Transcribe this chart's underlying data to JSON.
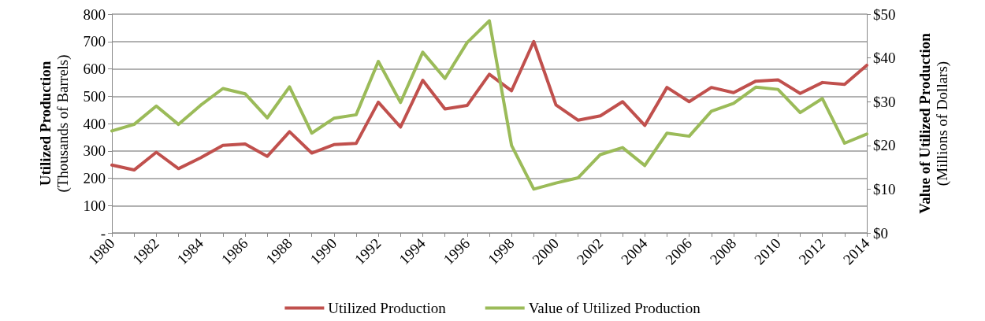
{
  "chart_data": {
    "type": "line",
    "ylabel": "Utilized Production\n(Thousands of Barrels)",
    "y2label": "Value of Utilized Production\n(Millions of Dollars)",
    "categories": [
      "1980",
      null,
      "1982",
      null,
      "1984",
      null,
      "1986",
      null,
      "1988",
      null,
      "1990",
      null,
      "1992",
      null,
      "1994",
      null,
      "1996",
      null,
      "1998",
      null,
      "2000",
      null,
      "2002",
      null,
      "2004",
      null,
      "2006",
      null,
      "2008",
      null,
      "2010",
      null,
      "2012",
      null,
      "2014"
    ],
    "series": [
      {
        "name": "Utilized Production",
        "color": "#c0504d",
        "values": [
          248,
          230,
          295,
          235,
          275,
          320,
          325,
          280,
          370,
          292,
          323,
          327,
          478,
          387,
          558,
          453,
          466,
          580,
          520,
          700,
          468,
          412,
          428,
          480,
          393,
          532,
          480,
          532,
          513,
          555,
          560,
          510,
          550,
          543,
          613
        ]
      },
      {
        "name": "Value of Utilized Production",
        "color": "#9bbb59",
        "axis": "y2",
        "values": [
          23.3,
          24.8,
          29,
          24.8,
          29.2,
          33,
          31.8,
          26.3,
          33.4,
          22.8,
          26.2,
          27,
          39.2,
          29.8,
          41.3,
          35.3,
          43.5,
          48.5,
          20,
          10,
          11.4,
          12.6,
          17.9,
          19.5,
          15.4,
          22.8,
          22.1,
          27.8,
          29.6,
          33.3,
          32.8,
          27.5,
          30.7,
          20.5,
          22.6
        ]
      }
    ],
    "ylim": [
      0,
      800
    ],
    "yticks": [
      {
        "value": 0,
        "label": "-"
      },
      100,
      200,
      300,
      400,
      500,
      600,
      700,
      800
    ],
    "y2lim": [
      0,
      50
    ],
    "y2ticks": [
      {
        "value": 0,
        "label": "$0"
      },
      {
        "value": 10,
        "label": "$10"
      },
      {
        "value": 20,
        "label": "$20"
      },
      {
        "value": 30,
        "label": "$30"
      },
      {
        "value": 40,
        "label": "$40"
      },
      {
        "value": 50,
        "label": "$50"
      }
    ],
    "grid": "y",
    "legend": "bottom",
    "marker": "none",
    "line_style": "solid"
  }
}
